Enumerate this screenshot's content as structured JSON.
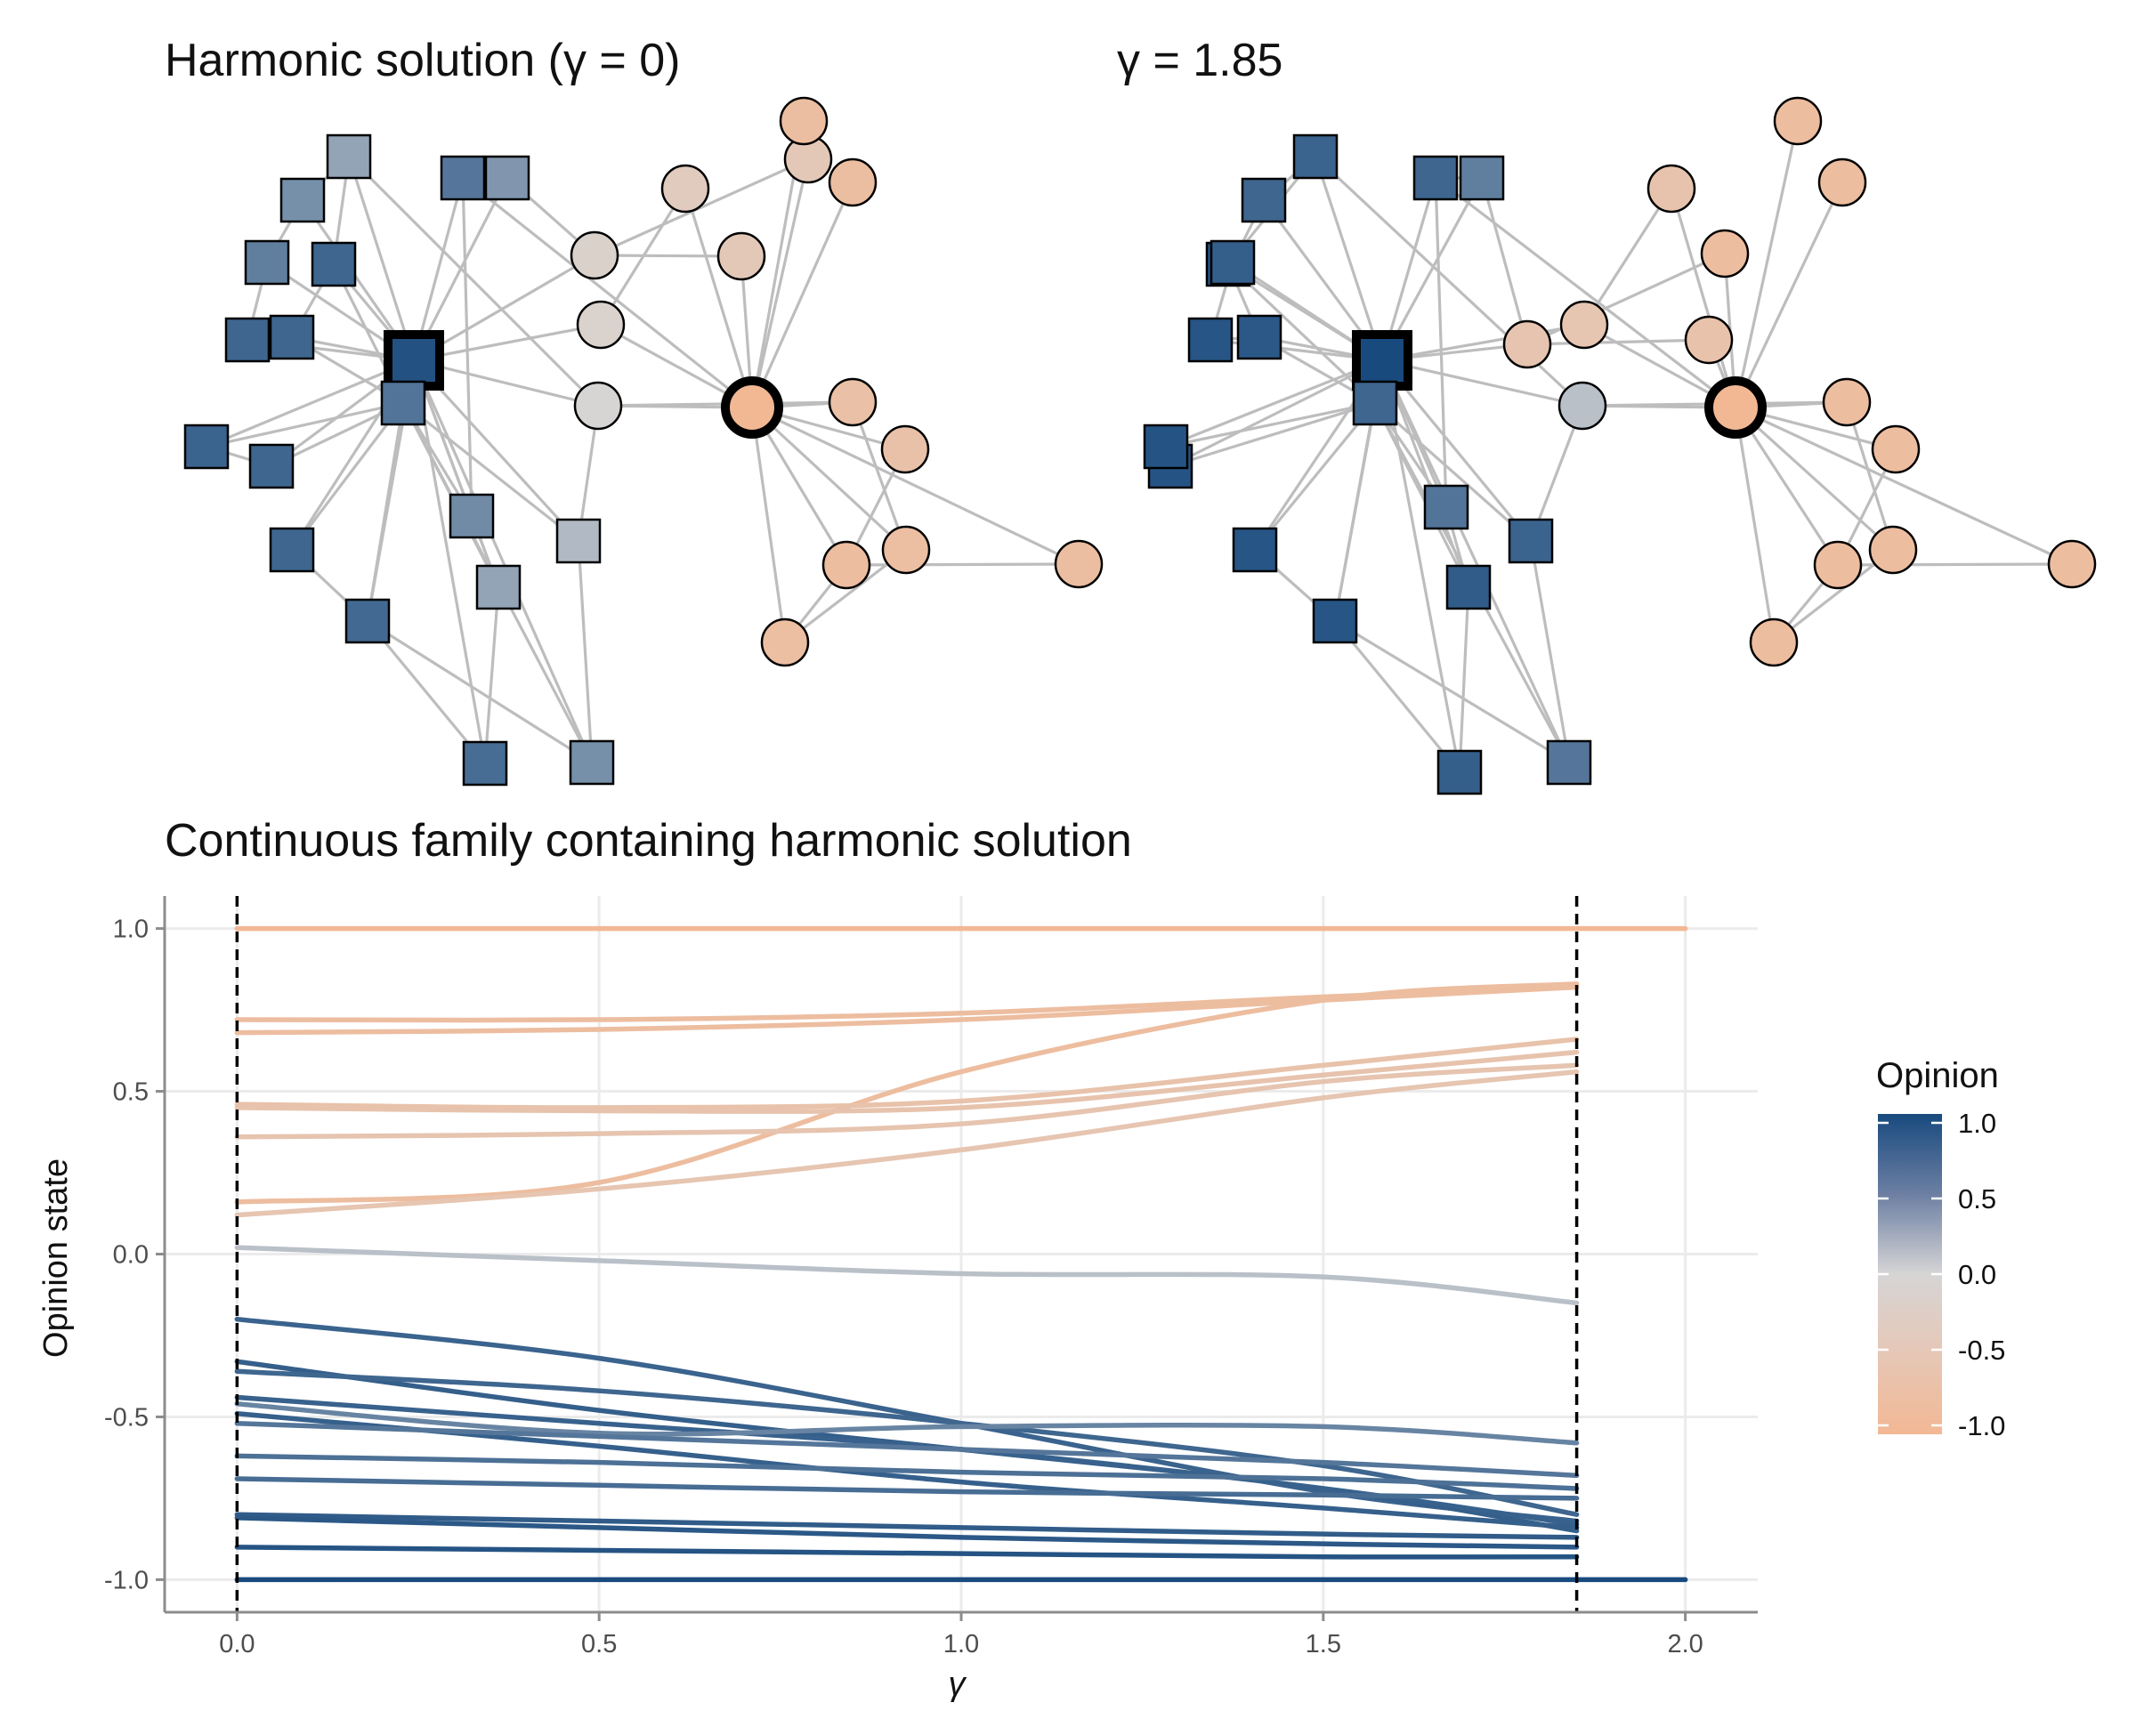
{
  "colors": {
    "positive": "#184a7e",
    "neutral": "#d6d5d5",
    "negative": "#f2b894",
    "edge": "#bdbdbd",
    "grid": "#ebebeb",
    "axis": "#8c8c8c"
  },
  "network_panels": [
    {
      "title": "Harmonic solution (γ = 0)",
      "nodes": [
        {
          "shape": "square",
          "opinion": -0.95,
          "leader": true
        },
        {
          "shape": "square",
          "opinion": -0.7
        },
        {
          "shape": "square",
          "opinion": -0.8
        },
        {
          "shape": "square",
          "opinion": -0.8
        },
        {
          "shape": "square",
          "opinion": -0.8
        },
        {
          "shape": "square",
          "opinion": -0.8
        },
        {
          "shape": "square",
          "opinion": -0.82
        },
        {
          "shape": "square",
          "opinion": -0.8
        },
        {
          "shape": "square",
          "opinion": -0.78
        },
        {
          "shape": "square",
          "opinion": -0.75
        },
        {
          "shape": "square",
          "opinion": -0.5
        },
        {
          "shape": "square",
          "opinion": -0.35
        },
        {
          "shape": "square",
          "opinion": -0.2
        },
        {
          "shape": "square",
          "opinion": -0.53
        },
        {
          "shape": "square",
          "opinion": -0.68
        },
        {
          "shape": "square",
          "opinion": -0.45
        },
        {
          "shape": "square",
          "opinion": -0.62
        },
        {
          "shape": "square",
          "opinion": -0.5
        },
        {
          "shape": "square",
          "opinion": -0.35
        },
        {
          "shape": "circle",
          "opinion": 0.02
        },
        {
          "shape": "circle",
          "opinion": 0.12
        },
        {
          "shape": "circle",
          "opinion": 0.15
        },
        {
          "shape": "circle",
          "opinion": 0.35
        },
        {
          "shape": "circle",
          "opinion": 0.45
        },
        {
          "shape": "circle",
          "opinion": 0.45
        },
        {
          "shape": "circle",
          "opinion": 1.0,
          "leader": true
        },
        {
          "shape": "circle",
          "opinion": 0.72
        },
        {
          "shape": "circle",
          "opinion": 0.68
        },
        {
          "shape": "circle",
          "opinion": 0.8
        },
        {
          "shape": "circle",
          "opinion": 0.78
        },
        {
          "shape": "circle",
          "opinion": 0.82
        },
        {
          "shape": "circle",
          "opinion": 0.78
        },
        {
          "shape": "circle",
          "opinion": 0.8
        },
        {
          "shape": "circle",
          "opinion": 0.8
        }
      ]
    },
    {
      "title": "γ = 1.85",
      "nodes": [
        {
          "shape": "square",
          "opinion": -1.0,
          "leader": true
        },
        {
          "shape": "square",
          "opinion": -0.8
        },
        {
          "shape": "square",
          "opinion": -0.9
        },
        {
          "shape": "square",
          "opinion": -0.92
        },
        {
          "shape": "square",
          "opinion": -0.92
        },
        {
          "shape": "square",
          "opinion": -0.93
        },
        {
          "shape": "square",
          "opinion": -0.93
        },
        {
          "shape": "square",
          "opinion": -0.92
        },
        {
          "shape": "square",
          "opinion": -0.92
        },
        {
          "shape": "square",
          "opinion": -0.85
        },
        {
          "shape": "square",
          "opinion": -0.68
        },
        {
          "shape": "square",
          "opinion": -0.87
        },
        {
          "shape": "square",
          "opinion": -0.82
        },
        {
          "shape": "square",
          "opinion": -0.7
        },
        {
          "shape": "square",
          "opinion": -0.8
        },
        {
          "shape": "square",
          "opinion": -0.62
        },
        {
          "shape": "square",
          "opinion": -0.85
        },
        {
          "shape": "square",
          "opinion": -0.8
        },
        {
          "shape": "square",
          "opinion": -0.82
        },
        {
          "shape": "circle",
          "opinion": -0.15
        },
        {
          "shape": "circle",
          "opinion": 0.56
        },
        {
          "shape": "circle",
          "opinion": 0.58
        },
        {
          "shape": "circle",
          "opinion": 0.62
        },
        {
          "shape": "circle",
          "opinion": 0.66
        },
        {
          "shape": "circle",
          "opinion": 0.82
        },
        {
          "shape": "circle",
          "opinion": 1.0,
          "leader": true
        },
        {
          "shape": "circle",
          "opinion": 0.82
        },
        {
          "shape": "circle",
          "opinion": 0.82
        },
        {
          "shape": "circle",
          "opinion": 0.82
        },
        {
          "shape": "circle",
          "opinion": 0.82
        },
        {
          "shape": "circle",
          "opinion": 0.83
        },
        {
          "shape": "circle",
          "opinion": 0.83
        },
        {
          "shape": "circle",
          "opinion": 0.82
        },
        {
          "shape": "circle",
          "opinion": 0.83
        }
      ]
    }
  ],
  "chart_data": {
    "type": "line",
    "title": "Continuous family containing harmonic solution",
    "xlabel": "γ",
    "ylabel": "Opinion state",
    "xlim": [
      -0.1,
      2.1
    ],
    "ylim": [
      -1.1,
      1.1
    ],
    "x_ticks": [
      {
        "value": 0,
        "label": "0.0"
      },
      {
        "value": 0.5,
        "label": "0.5"
      },
      {
        "value": 1,
        "label": "1.0"
      },
      {
        "value": 1.5,
        "label": "1.5"
      },
      {
        "value": 2,
        "label": "2.0"
      }
    ],
    "y_ticks": [
      {
        "value": -1,
        "label": "-1.0"
      },
      {
        "value": -0.5,
        "label": "-0.5"
      },
      {
        "value": 0,
        "label": "0.0"
      },
      {
        "value": 0.5,
        "label": "0.5"
      },
      {
        "value": 1,
        "label": "1.0"
      }
    ],
    "vlines": [
      0,
      1.85
    ],
    "grid": true,
    "legend": {
      "title": "Opinion",
      "placement": "right",
      "labels": [
        "1.0",
        "0.5",
        "0.0",
        "-0.5",
        "-1.0"
      ],
      "values": [
        1.0,
        0.5,
        0.0,
        -0.5,
        -1.0
      ]
    },
    "series": [
      {
        "x": [
          0,
          0.5,
          1,
          1.5,
          1.85,
          2.0
        ],
        "y": [
          1.0,
          1.0,
          1.0,
          1.0,
          1.0,
          1.0
        ]
      },
      {
        "x": [
          0,
          0.5,
          1,
          1.5,
          1.85
        ],
        "y": [
          0.72,
          0.72,
          0.74,
          0.79,
          0.82
        ]
      },
      {
        "x": [
          0,
          0.5,
          1,
          1.5,
          1.85
        ],
        "y": [
          0.68,
          0.69,
          0.72,
          0.78,
          0.82
        ]
      },
      {
        "x": [
          0,
          0.5,
          1,
          1.5,
          1.85
        ],
        "y": [
          0.16,
          0.22,
          0.56,
          0.78,
          0.83
        ]
      },
      {
        "x": [
          0,
          0.5,
          1,
          1.5,
          1.85
        ],
        "y": [
          0.46,
          0.45,
          0.47,
          0.58,
          0.66
        ]
      },
      {
        "x": [
          0,
          0.5,
          1,
          1.5,
          1.85
        ],
        "y": [
          0.45,
          0.44,
          0.45,
          0.55,
          0.62
        ]
      },
      {
        "x": [
          0,
          0.5,
          1,
          1.5,
          1.85
        ],
        "y": [
          0.36,
          0.37,
          0.4,
          0.53,
          0.58
        ]
      },
      {
        "x": [
          0,
          0.5,
          1,
          1.5,
          1.85
        ],
        "y": [
          0.12,
          0.2,
          0.32,
          0.48,
          0.56
        ]
      },
      {
        "x": [
          0,
          0.5,
          1,
          1.5,
          1.85
        ],
        "y": [
          0.02,
          -0.02,
          -0.06,
          -0.07,
          -0.15
        ]
      },
      {
        "x": [
          0,
          0.5,
          1,
          1.5,
          1.85
        ],
        "y": [
          -0.2,
          -0.32,
          -0.52,
          -0.73,
          -0.82
        ]
      },
      {
        "x": [
          0,
          0.5,
          1,
          1.5,
          1.85
        ],
        "y": [
          -0.33,
          -0.48,
          -0.6,
          -0.72,
          -0.85
        ]
      },
      {
        "x": [
          0,
          0.5,
          1,
          1.5,
          1.85
        ],
        "y": [
          -0.36,
          -0.42,
          -0.52,
          -0.65,
          -0.8
        ]
      },
      {
        "x": [
          0,
          0.5,
          1,
          1.5,
          1.85
        ],
        "y": [
          -0.44,
          -0.52,
          -0.6,
          -0.72,
          -0.83
        ]
      },
      {
        "x": [
          0,
          0.5,
          1,
          1.5,
          1.85
        ],
        "y": [
          -0.46,
          -0.55,
          -0.53,
          -0.53,
          -0.58
        ]
      },
      {
        "x": [
          0,
          0.5,
          1,
          1.5,
          1.85
        ],
        "y": [
          -0.49,
          -0.59,
          -0.7,
          -0.78,
          -0.84
        ]
      },
      {
        "x": [
          0,
          0.5,
          1,
          1.5,
          1.85
        ],
        "y": [
          -0.52,
          -0.56,
          -0.6,
          -0.64,
          -0.68
        ]
      },
      {
        "x": [
          0,
          0.5,
          1,
          1.5,
          1.85
        ],
        "y": [
          -0.62,
          -0.64,
          -0.67,
          -0.69,
          -0.72
        ]
      },
      {
        "x": [
          0,
          0.5,
          1,
          1.5,
          1.85
        ],
        "y": [
          -0.69,
          -0.71,
          -0.73,
          -0.74,
          -0.75
        ]
      },
      {
        "x": [
          0,
          0.5,
          1,
          1.5,
          1.85
        ],
        "y": [
          -0.8,
          -0.82,
          -0.84,
          -0.86,
          -0.87
        ]
      },
      {
        "x": [
          0,
          0.5,
          1,
          1.5,
          1.85
        ],
        "y": [
          -0.81,
          -0.84,
          -0.87,
          -0.89,
          -0.9
        ]
      },
      {
        "x": [
          0,
          0.5,
          1,
          1.5,
          1.85
        ],
        "y": [
          -0.9,
          -0.91,
          -0.92,
          -0.93,
          -0.93
        ]
      },
      {
        "x": [
          0,
          0.5,
          1,
          1.5,
          1.85,
          2.0
        ],
        "y": [
          -1.0,
          -1.0,
          -1.0,
          -1.0,
          -1.0,
          -1.0
        ]
      }
    ]
  }
}
